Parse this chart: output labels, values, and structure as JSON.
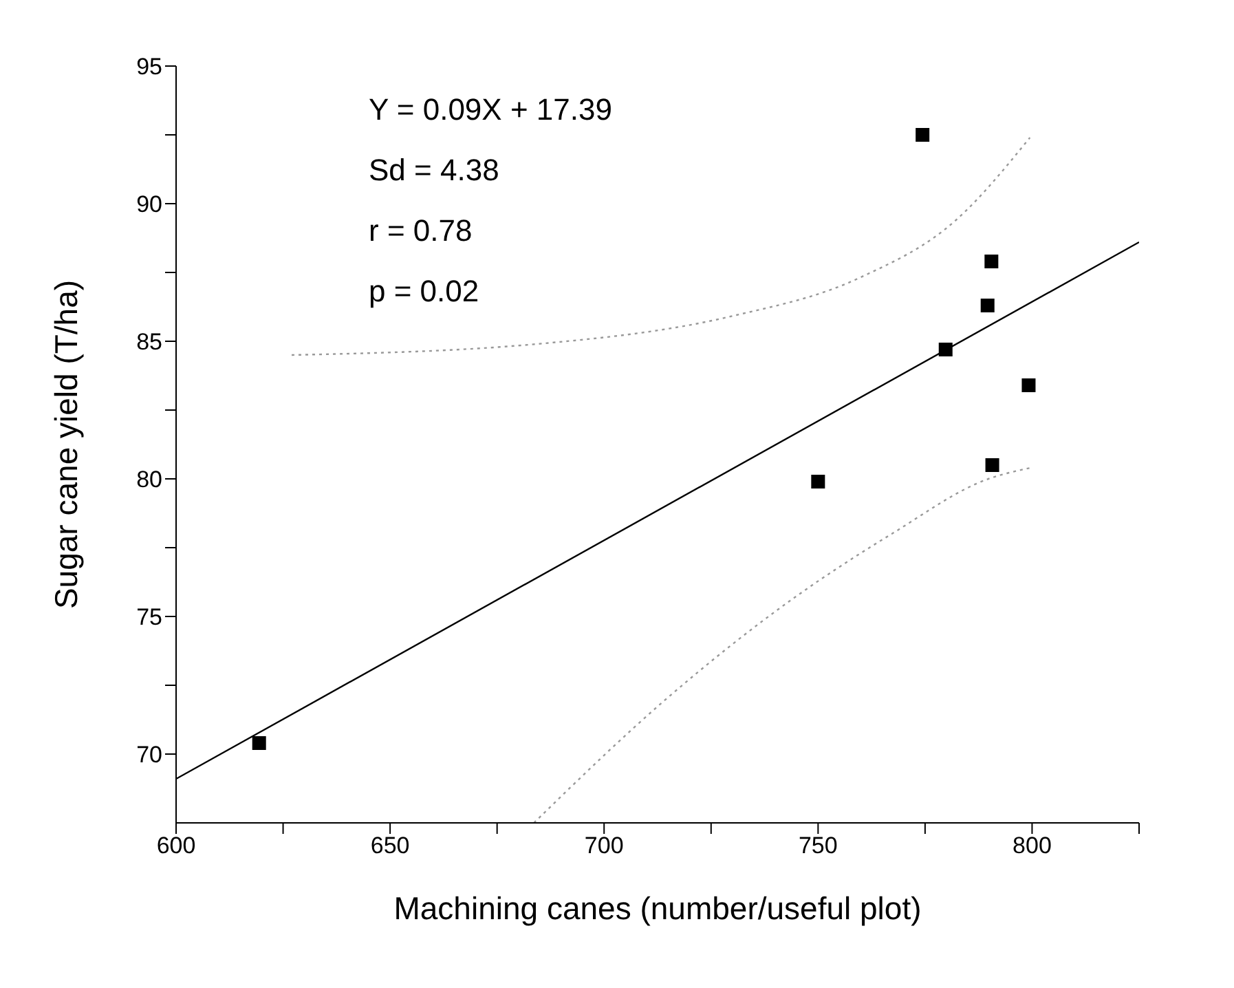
{
  "chart_data": {
    "type": "scatter",
    "xlabel": "Machining canes (number/useful plot)",
    "ylabel": "Sugar cane yield (T/ha)",
    "annotations": [
      "Y = 0.09X + 17.39",
      "Sd = 4.38",
      "r = 0.78",
      "p = 0.02"
    ],
    "series": [
      {
        "color": "#000000",
        "marker": "square",
        "x": [
          619.4,
          750,
          774.4,
          779.8,
          789.6,
          790.5,
          790.7,
          799.2
        ],
        "values": [
          70.4,
          79.9,
          92.5,
          84.7,
          86.3,
          87.9,
          80.5,
          83.4
        ]
      },
      {
        "type": "line",
        "color": "#000000",
        "marker": "none",
        "line_style": "solid",
        "x": [
          600,
          825
        ],
        "values": [
          69.1,
          88.6
        ]
      },
      {
        "type": "line",
        "color": "#999999",
        "marker": "none",
        "line_style": "dotted",
        "x": [
          627,
          684.3,
          729.5,
          759.6,
          782.2,
          799.5
        ],
        "values": [
          84.5,
          84.9,
          85.9,
          87.3,
          89.4,
          92.4
        ]
      },
      {
        "type": "line",
        "color": "#999999",
        "marker": "none",
        "line_style": "dotted",
        "x": [
          683.6,
          714.5,
          744.6,
          767.2,
          789.8,
          799.6
        ],
        "values": [
          67.5,
          72.0,
          75.7,
          78.0,
          80.0,
          80.4
        ]
      }
    ],
    "xlim": [
      600,
      825
    ],
    "xticks": [
      600,
      {
        "value": 625,
        "label": null
      },
      650,
      {
        "value": 675,
        "label": null
      },
      700,
      {
        "value": 725,
        "label": null
      },
      750,
      {
        "value": 775,
        "label": null
      },
      800,
      {
        "value": 825,
        "label": null
      }
    ],
    "ylim": [
      67.5,
      95
    ],
    "yticks": [
      70,
      {
        "value": 72.5,
        "label": null
      },
      75,
      {
        "value": 77.5,
        "label": null
      },
      80,
      {
        "value": 82.5,
        "label": null
      },
      85,
      {
        "value": 87.5,
        "label": null
      },
      90,
      {
        "value": 92.5,
        "label": null
      },
      95
    ],
    "grid": false,
    "legend": false
  }
}
